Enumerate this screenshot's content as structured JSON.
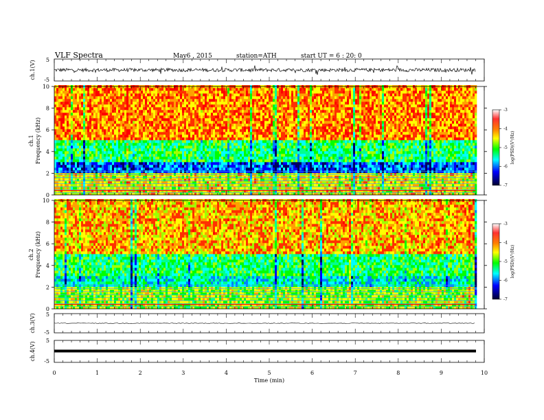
{
  "header": {
    "title": "VLF  Spectra",
    "date": "May6  , 2015",
    "station": "station=ATH",
    "start": "start  UT  =   6  : 20: 0"
  },
  "panels": {
    "ch1_label": "ch.1(V)",
    "spec1_label": "ch.1",
    "spec2_label": "ch.2",
    "freq_label": "Frequency  (kHz)",
    "ch3_label": "ch.3(V)",
    "ch4_label": "ch.4(V)",
    "x_label": "Time  (min)"
  },
  "colorbar": {
    "label": "log(PSD)(V²/Hz)",
    "ticks": [
      "-3",
      "-4",
      "-5",
      "-6",
      "-7"
    ],
    "colors": [
      "#ffffff",
      "#ff0000",
      "#ffa000",
      "#ffff00",
      "#00ff00",
      "#00ffff",
      "#0000ff",
      "#000040"
    ]
  },
  "chart_data": [
    {
      "type": "line",
      "name": "ch.1 waveform",
      "xlabel": "",
      "ylabel": "ch.1(V)",
      "xlim": [
        0,
        10
      ],
      "ylim": [
        -5,
        5
      ],
      "yticks": [
        "5",
        "-5"
      ],
      "description_data": {
        "x_end": 9.8,
        "mean": 0,
        "amplitude_typ": 0.8,
        "amplitude_max": 2.2
      }
    },
    {
      "type": "heatmap",
      "name": "ch.1 spectrogram",
      "ylabel": "Frequency  (kHz)",
      "xlim": [
        0,
        10
      ],
      "ylim": [
        0,
        10
      ],
      "yticks": [
        "0",
        "2",
        "4",
        "6",
        "8",
        "10"
      ],
      "zrange": [
        -7,
        -3
      ],
      "x_end": 9.8,
      "bands": [
        {
          "f": [
            0,
            2
          ],
          "logpsd": -4.3
        },
        {
          "f": [
            2,
            3
          ],
          "logpsd": -6.2
        },
        {
          "f": [
            3,
            5
          ],
          "logpsd": -5.2
        },
        {
          "f": [
            5,
            10
          ],
          "logpsd": -3.8
        }
      ]
    },
    {
      "type": "heatmap",
      "name": "ch.2 spectrogram",
      "ylabel": "Frequency  (kHz)",
      "xlim": [
        0,
        10
      ],
      "ylim": [
        0,
        10
      ],
      "yticks": [
        "0",
        "2",
        "4",
        "6",
        "8",
        "10"
      ],
      "zrange": [
        -7,
        -3
      ],
      "x_end": 9.8,
      "bands": [
        {
          "f": [
            0,
            2
          ],
          "logpsd": -4.6
        },
        {
          "f": [
            2,
            3
          ],
          "logpsd": -5.6
        },
        {
          "f": [
            3,
            5
          ],
          "logpsd": -5.2
        },
        {
          "f": [
            5,
            10
          ],
          "logpsd": -4.0
        }
      ]
    },
    {
      "type": "line",
      "name": "ch.3 waveform",
      "ylabel": "ch.3(V)",
      "xlim": [
        0,
        10
      ],
      "ylim": [
        -5,
        5
      ],
      "yticks": [
        "5",
        "-5"
      ],
      "values_mean": 0
    },
    {
      "type": "line",
      "name": "ch.4 waveform",
      "ylabel": "ch.4(V)",
      "xlim": [
        0,
        10
      ],
      "ylim": [
        -5,
        5
      ],
      "yticks": [
        "5",
        "-5"
      ],
      "values_mean": 0
    },
    {
      "type": "axis",
      "name": "time axis",
      "xlabel": "Time  (min)",
      "xlim": [
        0,
        10
      ],
      "xticks": [
        "0",
        "1",
        "2",
        "3",
        "4",
        "5",
        "6",
        "7",
        "8",
        "9",
        "10"
      ]
    }
  ]
}
